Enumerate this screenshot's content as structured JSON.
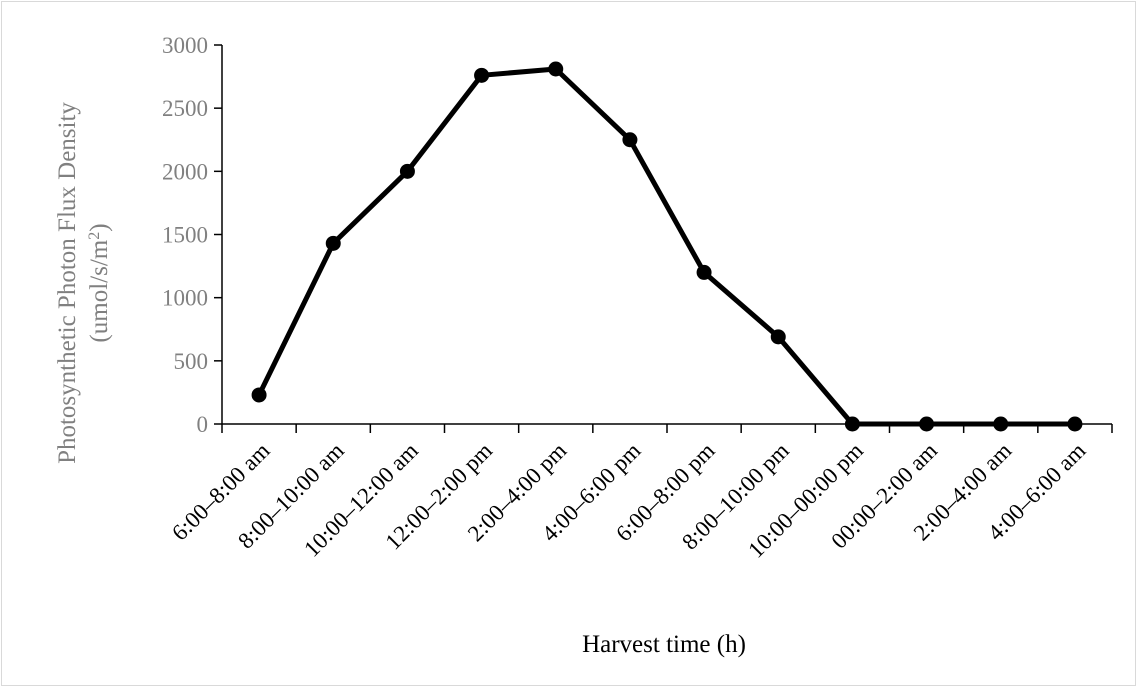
{
  "chart_data": {
    "type": "line",
    "title": "",
    "xlabel": "Harvest time (h)",
    "ylabel_line1": "Photosynthetic Photon Flux Density",
    "ylabel_line2_prefix": "(umol/s/m",
    "ylabel_line2_sup": "2",
    "ylabel_line2_suffix": ")",
    "ylim": [
      0,
      3000
    ],
    "yticks": [
      "0",
      "500",
      "1000",
      "1500",
      "2000",
      "2500",
      "3000"
    ],
    "categories": [
      "6:00–8:00 am",
      "8:00–10:00 am",
      "10:00–12:00 am",
      "12:00–2:00 pm",
      "2:00–4:00 pm",
      "4:00–6:00 pm",
      "6:00–8:00 pm",
      "8:00–10:00 pm",
      "10:00–00:00 pm",
      "00:00–2:00 am",
      "2:00–4:00 am",
      "4:00–6:00 am"
    ],
    "series": [
      {
        "values": [
          230,
          1430,
          2000,
          2760,
          2810,
          2250,
          1200,
          690,
          0,
          0,
          0,
          0
        ],
        "color": "#000000",
        "marker": "circle"
      }
    ],
    "grid": false,
    "legend": "none"
  }
}
